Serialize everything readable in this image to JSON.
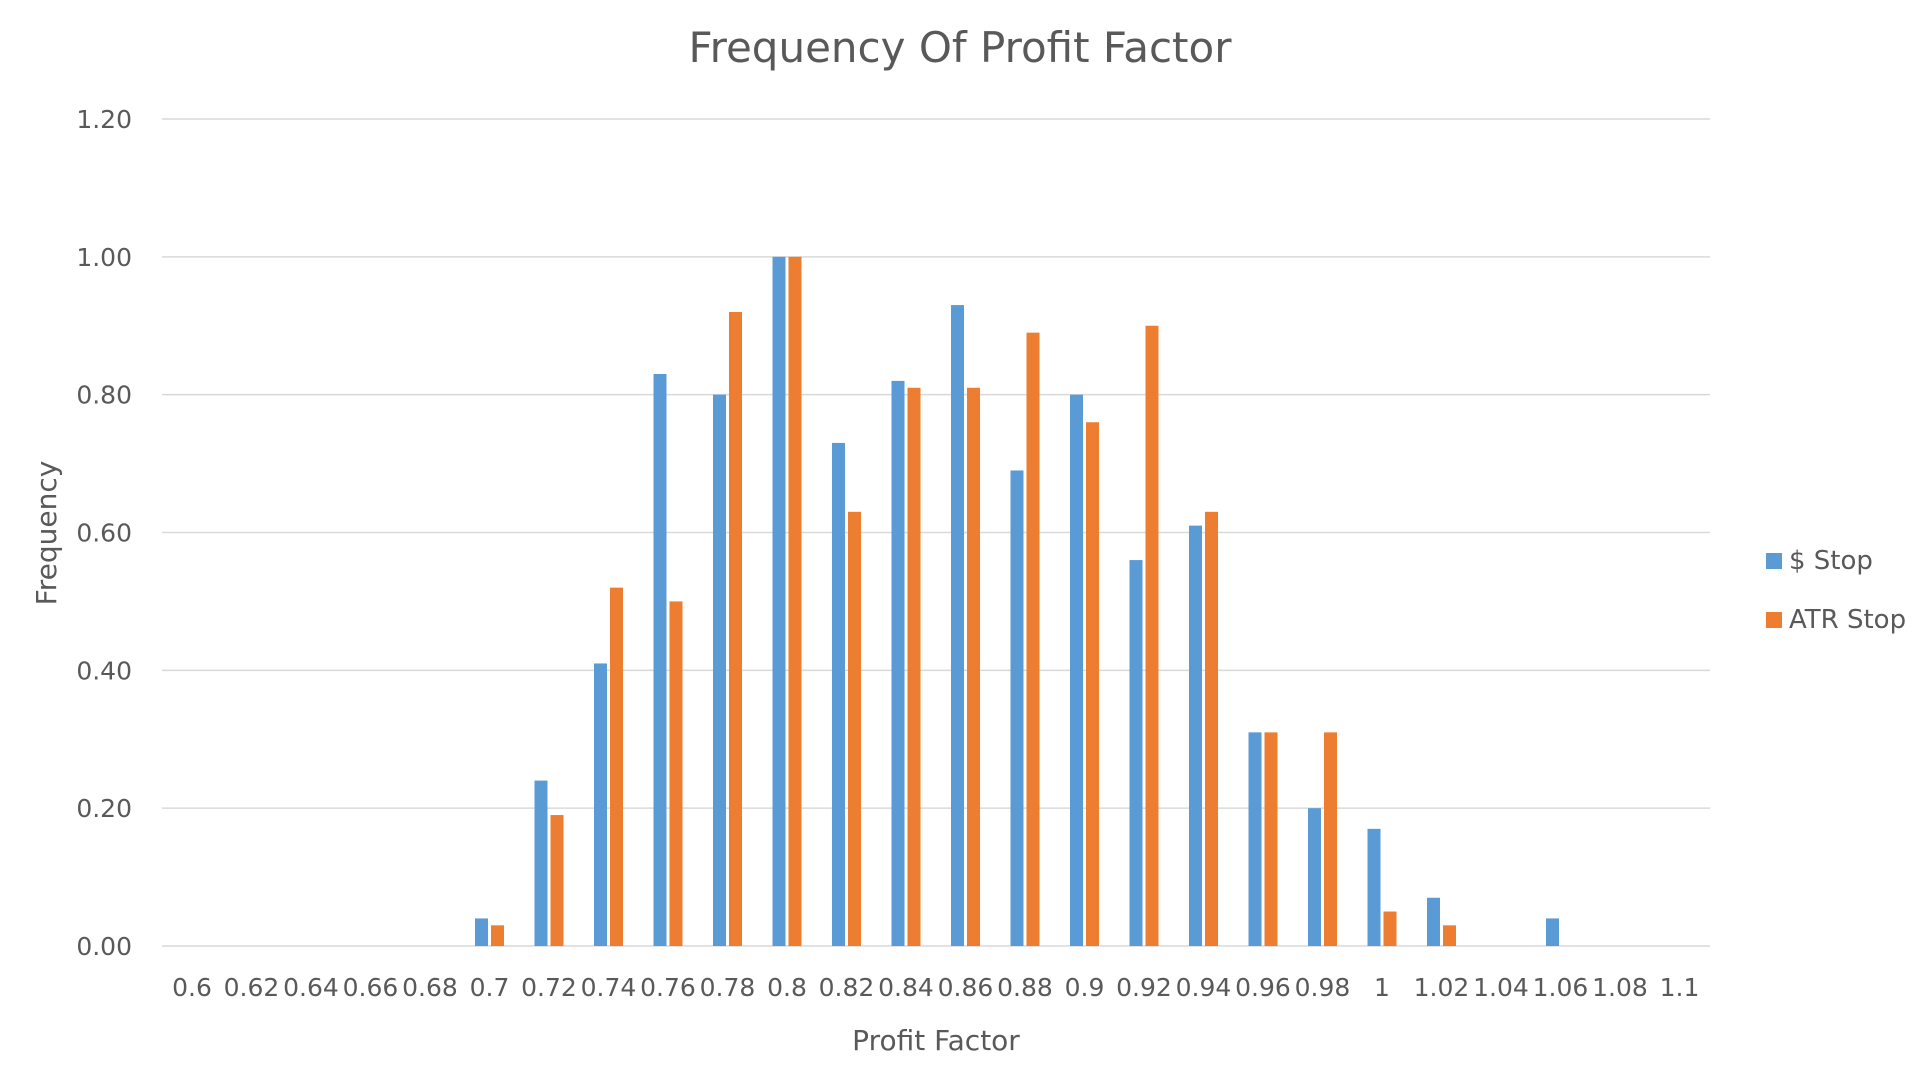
{
  "chart_data": {
    "type": "bar",
    "title": "Frequency Of Profit Factor",
    "xlabel": "Profit Factor",
    "ylabel": "Frequency",
    "ylim": [
      0,
      1.2
    ],
    "yticks": [
      "0.00",
      "0.20",
      "0.40",
      "0.60",
      "0.80",
      "1.00",
      "1.20"
    ],
    "grid": true,
    "legend_position": "right",
    "categories": [
      "0.6",
      "0.62",
      "0.64",
      "0.66",
      "0.68",
      "0.7",
      "0.72",
      "0.74",
      "0.76",
      "0.78",
      "0.8",
      "0.82",
      "0.84",
      "0.86",
      "0.88",
      "0.9",
      "0.92",
      "0.94",
      "0.96",
      "0.98",
      "1",
      "1.02",
      "1.04",
      "1.06",
      "1.08",
      "1.1"
    ],
    "series": [
      {
        "name": "$ Stop",
        "color": "#5B9BD5",
        "values": [
          0,
          0,
          0,
          0,
          0,
          0.04,
          0.24,
          0.41,
          0.83,
          0.8,
          1.0,
          0.73,
          0.82,
          0.93,
          0.69,
          0.8,
          0.56,
          0.61,
          0.31,
          0.2,
          0.17,
          0.07,
          0,
          0.04,
          0,
          0
        ]
      },
      {
        "name": "ATR Stop",
        "color": "#ED7D31",
        "values": [
          0,
          0,
          0,
          0,
          0,
          0.03,
          0.19,
          0.52,
          0.5,
          0.92,
          1.0,
          0.63,
          0.81,
          0.81,
          0.89,
          0.76,
          0.9,
          0.63,
          0.31,
          0.31,
          0.05,
          0.03,
          0,
          0,
          0,
          0
        ]
      }
    ]
  }
}
